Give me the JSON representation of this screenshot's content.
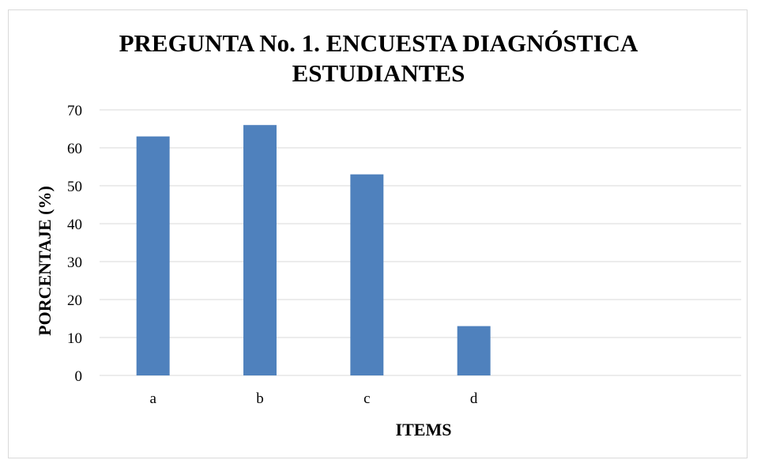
{
  "chart_data": {
    "type": "bar",
    "title_lines": [
      "PREGUNTA No. 1. ENCUESTA DIAGNÓSTICA",
      "ESTUDIANTES"
    ],
    "categories": [
      "a",
      "b",
      "c",
      "d",
      "",
      ""
    ],
    "values": [
      63,
      66,
      53,
      13,
      null,
      null
    ],
    "xlabel": "ITEMS",
    "ylabel": "PORCENTAJE (%)",
    "ylim": [
      0,
      70
    ],
    "yticks": [
      0,
      10,
      20,
      30,
      40,
      50,
      60,
      70
    ],
    "grid": true,
    "legend": "none",
    "bar_color": "#4f81bd",
    "grid_color": "#d9d9d9"
  }
}
